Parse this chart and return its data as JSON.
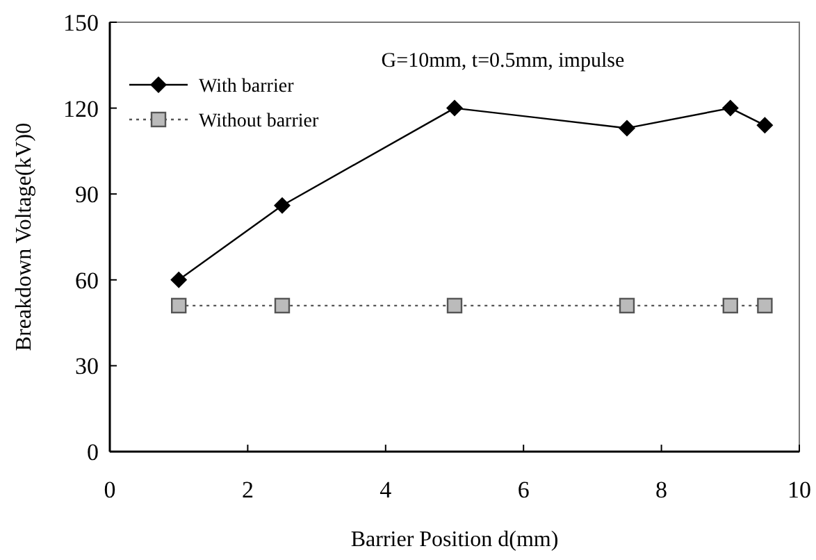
{
  "chart_data": {
    "type": "line",
    "xlabel": "Barrier Position d(mm)",
    "ylabel": "Breakdown Voltage(kV)0",
    "annotations": [
      "G=10mm, t=0.5mm, impulse"
    ],
    "x": [
      1,
      2.5,
      5,
      7.5,
      9,
      9.5
    ],
    "series": [
      {
        "name": "With barrier",
        "color": "#000000",
        "values": [
          60,
          86,
          120,
          113,
          120,
          114
        ],
        "marker": "diamond",
        "line_style": "solid"
      },
      {
        "name": "Without barrier",
        "color": "#555555",
        "values": [
          51,
          51,
          51,
          51,
          51,
          51
        ],
        "marker": "square",
        "line_style": "dotted"
      }
    ],
    "xlim": [
      0,
      10
    ],
    "xticks": [
      0,
      2,
      4,
      6,
      8,
      10
    ],
    "ylim": [
      0,
      150
    ],
    "yticks": [
      0,
      30,
      60,
      90,
      120,
      150
    ],
    "grid": false,
    "legend": "top left"
  }
}
